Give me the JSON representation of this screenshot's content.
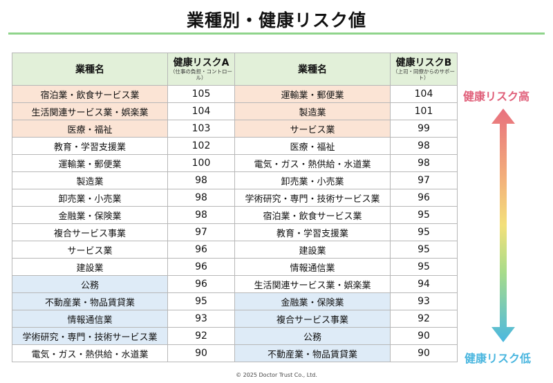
{
  "title": "業種別・健康リスク値",
  "table": {
    "header": {
      "industry_a": "業種名",
      "risk_a": "健康リスクA",
      "risk_a_sub": "（仕事の負担・コントロール）",
      "industry_b": "業種名",
      "risk_b": "健康リスクB",
      "risk_b_sub": "（上司・同僚からのサポート）"
    },
    "rows": [
      {
        "a_name": "宿泊業・飲食サービス業",
        "a_val": "105",
        "b_name": "運輸業・郵便業",
        "b_val": "104",
        "a_tier": "high",
        "b_tier": "high"
      },
      {
        "a_name": "生活関連サービス業・娯楽業",
        "a_val": "104",
        "b_name": "製造業",
        "b_val": "101",
        "a_tier": "high",
        "b_tier": "high"
      },
      {
        "a_name": "医療・福祉",
        "a_val": "103",
        "b_name": "サービス業",
        "b_val": "99",
        "a_tier": "high",
        "b_tier": "high"
      },
      {
        "a_name": "教育・学習支援業",
        "a_val": "102",
        "b_name": "医療・福祉",
        "b_val": "98",
        "a_tier": "mid",
        "b_tier": "mid"
      },
      {
        "a_name": "運輸業・郵便業",
        "a_val": "100",
        "b_name": "電気・ガス・熱供給・水道業",
        "b_val": "98",
        "a_tier": "mid",
        "b_tier": "mid"
      },
      {
        "a_name": "製造業",
        "a_val": "98",
        "b_name": "卸売業・小売業",
        "b_val": "97",
        "a_tier": "mid",
        "b_tier": "mid"
      },
      {
        "a_name": "卸売業・小売業",
        "a_val": "98",
        "b_name": "学術研究・専門・技術サービス業",
        "b_val": "96",
        "a_tier": "mid",
        "b_tier": "mid"
      },
      {
        "a_name": "金融業・保険業",
        "a_val": "98",
        "b_name": "宿泊業・飲食サービス業",
        "b_val": "95",
        "a_tier": "mid",
        "b_tier": "mid"
      },
      {
        "a_name": "複合サービス事業",
        "a_val": "97",
        "b_name": "教育・学習支援業",
        "b_val": "95",
        "a_tier": "mid",
        "b_tier": "mid"
      },
      {
        "a_name": "サービス業",
        "a_val": "96",
        "b_name": "建設業",
        "b_val": "95",
        "a_tier": "mid",
        "b_tier": "mid"
      },
      {
        "a_name": "建設業",
        "a_val": "96",
        "b_name": "情報通信業",
        "b_val": "95",
        "a_tier": "mid",
        "b_tier": "mid"
      },
      {
        "a_name": "公務",
        "a_val": "96",
        "b_name": "生活関連サービス業・娯楽業",
        "b_val": "94",
        "a_tier": "low",
        "b_tier": "mid"
      },
      {
        "a_name": "不動産業・物品賃貸業",
        "a_val": "95",
        "b_name": "金融業・保険業",
        "b_val": "93",
        "a_tier": "low",
        "b_tier": "low"
      },
      {
        "a_name": "情報通信業",
        "a_val": "93",
        "b_name": "複合サービス事業",
        "b_val": "92",
        "a_tier": "low",
        "b_tier": "low"
      },
      {
        "a_name": "学術研究・専門・技術サービス業",
        "a_val": "92",
        "b_name": "公務",
        "b_val": "90",
        "a_tier": "low",
        "b_tier": "low"
      },
      {
        "a_name": "電気・ガス・熱供給・水道業",
        "a_val": "90",
        "b_name": "不動産業・物品賃貸業",
        "b_val": "90",
        "a_tier": "mid",
        "b_tier": "low"
      }
    ]
  },
  "legend": {
    "high_label": "健康リスク高",
    "low_label": "健康リスク低",
    "high_color": "#e0607a",
    "low_color": "#4ab6df"
  },
  "colors": {
    "header_bg": "#e2f0d9",
    "high_bg": "#fbe4d5",
    "low_bg": "#deebf7",
    "title_rule": "#8fd48b"
  },
  "copyright": "© 2025 Doctor Trust Co., Ltd."
}
